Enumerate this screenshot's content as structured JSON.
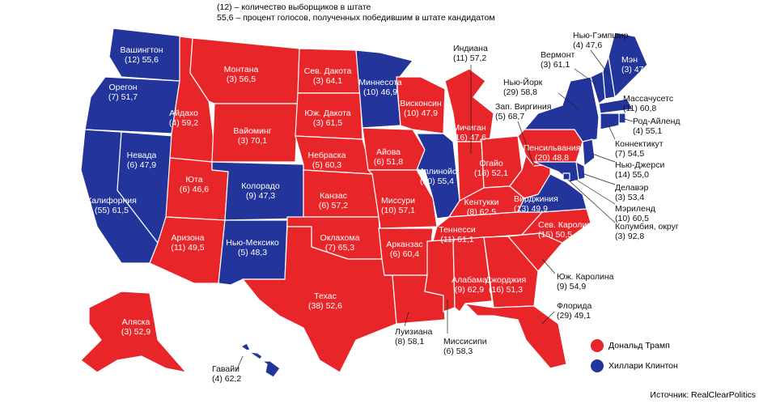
{
  "header": {
    "votes_note": "(12) – количество выборщиков в штате",
    "percent_note": "55,6 – процент голосов, полученных победившим в штате кандидатом"
  },
  "legend": [
    {
      "name": "Дональд Трамп",
      "color": "#e8262a"
    },
    {
      "name": "Хиллари Клинтон",
      "color": "#23349b"
    }
  ],
  "states": [
    {
      "name": "Вашингтон",
      "label": "(12) 55,6",
      "winner": 1
    },
    {
      "name": "Орегон",
      "label": "(7) 51,7",
      "winner": 1
    },
    {
      "name": "Калифорния",
      "label": "(55) 61,5",
      "winner": 1
    },
    {
      "name": "Невада",
      "label": "(6) 47,9",
      "winner": 1
    },
    {
      "name": "Айдахо",
      "label": "(4) 59,2",
      "winner": 0
    },
    {
      "name": "Монтана",
      "label": "(3) 56,5",
      "winner": 0
    },
    {
      "name": "Вайоминг",
      "label": "(3) 70,1",
      "winner": 0
    },
    {
      "name": "Юта",
      "label": "(6) 46,6",
      "winner": 0
    },
    {
      "name": "Аризона",
      "label": "(11) 49,5",
      "winner": 0
    },
    {
      "name": "Колорадо",
      "label": "(9) 47,3",
      "winner": 1
    },
    {
      "name": "Нью-Мексико",
      "label": "(5) 48,3",
      "winner": 1
    },
    {
      "name": "Сев. Дакота",
      "label": "(3) 64,1",
      "winner": 0
    },
    {
      "name": "Юж. Дакота",
      "label": "(3) 61,5",
      "winner": 0
    },
    {
      "name": "Небраска",
      "label": "(5) 60,3",
      "winner": 0
    },
    {
      "name": "Канзас",
      "label": "(6) 57,2",
      "winner": 0
    },
    {
      "name": "Оклахома",
      "label": "(7) 65,3",
      "winner": 0
    },
    {
      "name": "Техас",
      "label": "(38) 52,6",
      "winner": 0
    },
    {
      "name": "Миннесота",
      "label": "(10) 46,9",
      "winner": 1
    },
    {
      "name": "Айова",
      "label": "(6) 51,8",
      "winner": 0
    },
    {
      "name": "Миссури",
      "label": "(10) 57,1",
      "winner": 0
    },
    {
      "name": "Арканзас",
      "label": "(6) 60,4",
      "winner": 0
    },
    {
      "name": "Луизиана",
      "label": "(8) 58,1",
      "winner": 0
    },
    {
      "name": "Висконсин",
      "label": "(10) 47,9",
      "winner": 0
    },
    {
      "name": "Иллинойс",
      "label": "(20) 55,4",
      "winner": 1
    },
    {
      "name": "Мичиган",
      "label": "(16) 47,6",
      "winner": 0
    },
    {
      "name": "Индиана",
      "label": "(11) 57,2",
      "winner": 0
    },
    {
      "name": "Огайо",
      "label": "(18) 52,1",
      "winner": 0
    },
    {
      "name": "Кентукки",
      "label": "(8) 62,5",
      "winner": 0
    },
    {
      "name": "Теннесси",
      "label": "(11) 61,1",
      "winner": 0
    },
    {
      "name": "Миссисипи",
      "label": "(6) 58,3",
      "winner": 0
    },
    {
      "name": "Алабама",
      "label": "(9) 62,9",
      "winner": 0
    },
    {
      "name": "Джорджия",
      "label": "(16) 51,3",
      "winner": 0
    },
    {
      "name": "Флорида",
      "label": "(29) 49,1",
      "winner": 0
    },
    {
      "name": "Юж. Каролина",
      "label": "(9) 54,9",
      "winner": 0
    },
    {
      "name": "Сев. Каролина",
      "label": "(15) 50,5",
      "winner": 0
    },
    {
      "name": "Вирджиния",
      "label": "(13) 49,9",
      "winner": 1
    },
    {
      "name": "Зап. Виргиния",
      "label": "(5) 68,7",
      "winner": 0
    },
    {
      "name": "Пенсильвания",
      "label": "(20) 48,8",
      "winner": 0
    },
    {
      "name": "Нью-Йорк",
      "label": "(29) 58,8",
      "winner": 1
    },
    {
      "name": "Вермонт",
      "label": "(3) 61,1",
      "winner": 1
    },
    {
      "name": "Нью-Гэмпшир",
      "label": "(4) 47,6",
      "winner": 1
    },
    {
      "name": "Мэн",
      "label": "(3) 47,9",
      "winner": 1
    },
    {
      "name": "Массачусетс",
      "label": "(11) 60,8",
      "winner": 1
    },
    {
      "name": "Род-Айленд",
      "label": "(4) 55,1",
      "winner": 1
    },
    {
      "name": "Коннектикут",
      "label": "(7) 54,5",
      "winner": 1
    },
    {
      "name": "Нью-Джерси",
      "label": "(14) 55,0",
      "winner": 1
    },
    {
      "name": "Делавэр",
      "label": "(3) 53,4",
      "winner": 1
    },
    {
      "name": "Мэриленд",
      "label": "(10) 60,5",
      "winner": 1
    },
    {
      "name": "Колумбия, округ",
      "label": "(3) 92,8",
      "winner": 1
    },
    {
      "name": "Аляска",
      "label": "(3) 52,9",
      "winner": 0
    },
    {
      "name": "Гавайи",
      "label": "(4) 62,2",
      "winner": 1
    }
  ],
  "source": "Источник: RealClearPolitics"
}
